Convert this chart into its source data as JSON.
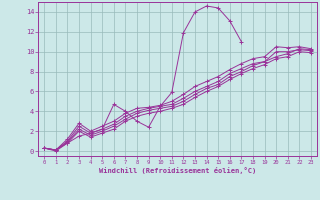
{
  "bg_color": "#cce8e8",
  "grid_color": "#99bbbb",
  "line_color": "#993399",
  "marker_color": "#993399",
  "xlabel": "Windchill (Refroidissement éolien,°C)",
  "xlim": [
    -0.5,
    23.5
  ],
  "ylim": [
    -0.5,
    15
  ],
  "xticks": [
    0,
    1,
    2,
    3,
    4,
    5,
    6,
    7,
    8,
    9,
    10,
    11,
    12,
    13,
    14,
    15,
    16,
    17,
    18,
    19,
    20,
    21,
    22,
    23
  ],
  "yticks": [
    0,
    2,
    4,
    6,
    8,
    10,
    12,
    14
  ],
  "series": [
    {
      "x": [
        0,
        1,
        2,
        3,
        4,
        5,
        6,
        7,
        8,
        9,
        10,
        11,
        12,
        13,
        14,
        15,
        16,
        17
      ],
      "y": [
        0.3,
        0.0,
        0.8,
        1.5,
        1.8,
        2.2,
        4.7,
        4.0,
        3.0,
        2.4,
        4.5,
        5.9,
        11.9,
        14.0,
        14.6,
        14.4,
        13.1,
        11.0
      ]
    },
    {
      "x": [
        0,
        1,
        2,
        3,
        4,
        5,
        6,
        7,
        8,
        9,
        10,
        11,
        12,
        13,
        14,
        15,
        16,
        17,
        18,
        19,
        20,
        21,
        22,
        23
      ],
      "y": [
        0.3,
        0.1,
        1.2,
        2.8,
        2.0,
        2.5,
        3.0,
        3.8,
        4.3,
        4.4,
        4.6,
        5.0,
        5.7,
        6.5,
        7.0,
        7.5,
        8.2,
        8.8,
        9.3,
        9.5,
        10.5,
        10.4,
        10.5,
        10.3
      ]
    },
    {
      "x": [
        0,
        1,
        2,
        3,
        4,
        5,
        6,
        7,
        8,
        9,
        10,
        11,
        12,
        13,
        14,
        15,
        16,
        17,
        18,
        19,
        20,
        21,
        22,
        23
      ],
      "y": [
        0.3,
        0.1,
        1.0,
        2.5,
        1.8,
        2.2,
        2.7,
        3.5,
        4.0,
        4.3,
        4.5,
        4.7,
        5.3,
        6.0,
        6.5,
        7.0,
        7.8,
        8.3,
        8.8,
        9.0,
        10.0,
        10.0,
        10.2,
        10.1
      ]
    },
    {
      "x": [
        0,
        1,
        2,
        3,
        4,
        5,
        6,
        7,
        8,
        9,
        10,
        11,
        12,
        13,
        14,
        15,
        16,
        17,
        18,
        19,
        20,
        21,
        22,
        23
      ],
      "y": [
        0.3,
        0.1,
        0.9,
        2.2,
        1.6,
        2.0,
        2.5,
        3.2,
        3.8,
        4.1,
        4.3,
        4.5,
        5.0,
        5.7,
        6.3,
        6.7,
        7.5,
        8.0,
        8.6,
        9.0,
        9.5,
        9.8,
        10.3,
        10.2
      ]
    },
    {
      "x": [
        0,
        1,
        2,
        3,
        4,
        5,
        6,
        7,
        8,
        9,
        10,
        11,
        12,
        13,
        14,
        15,
        16,
        17,
        18,
        19,
        20,
        21,
        22,
        23
      ],
      "y": [
        0.3,
        0.1,
        0.8,
        2.0,
        1.4,
        1.8,
        2.2,
        3.0,
        3.5,
        3.8,
        4.0,
        4.3,
        4.7,
        5.4,
        6.0,
        6.5,
        7.2,
        7.8,
        8.3,
        8.7,
        9.3,
        9.5,
        10.0,
        9.9
      ]
    }
  ]
}
